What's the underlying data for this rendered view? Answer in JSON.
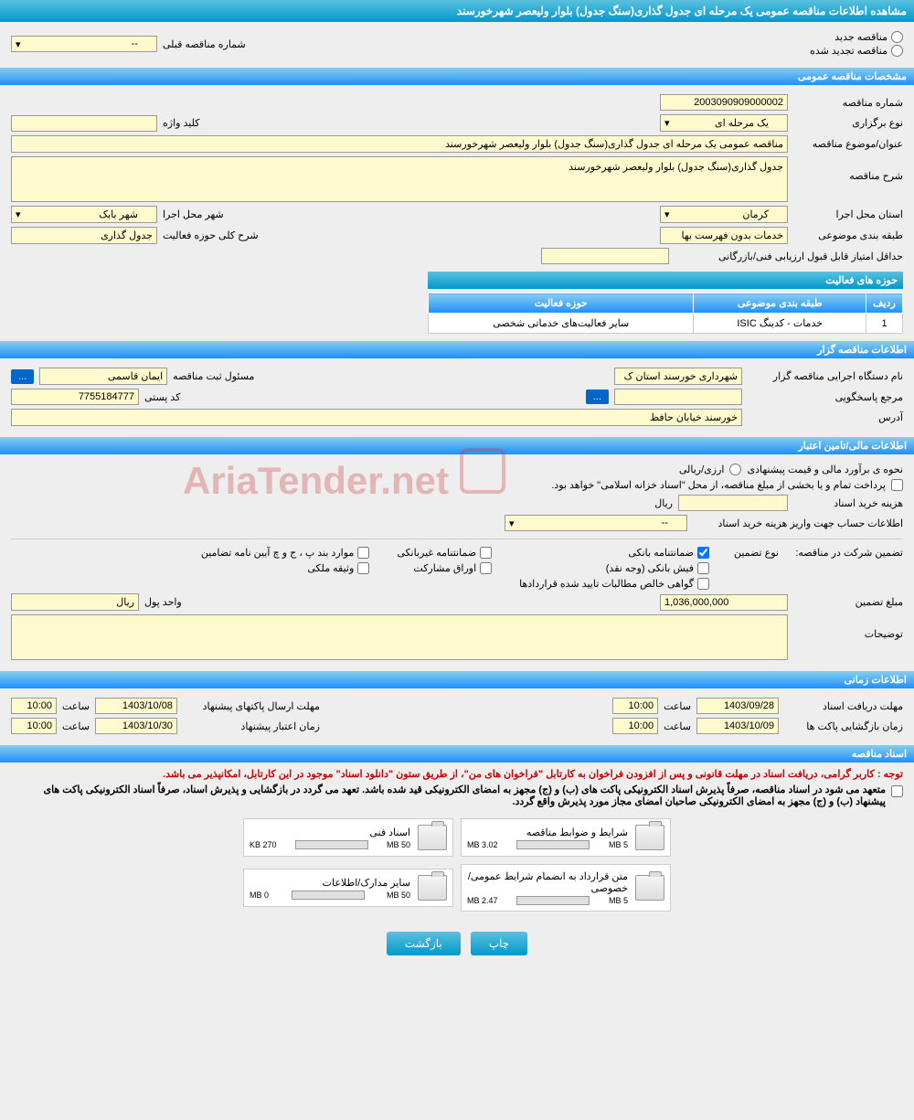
{
  "header": {
    "title": "مشاهده اطلاعات مناقصه عمومی یک مرحله ای جدول گذاری(سنگ جدول) بلوار ولیعصر شهرخورسند"
  },
  "tender_type": {
    "new_label": "مناقصه جدید",
    "renewed_label": "مناقصه تجدید شده",
    "prev_number_label": "شماره مناقصه قبلی",
    "prev_number_value": "--"
  },
  "sections": {
    "general": "مشخصات مناقصه عمومی",
    "organizer": "اطلاعات مناقصه گزار",
    "financial": "اطلاعات مالی/تامین اعتبار",
    "time": "اطلاعات زمانی",
    "documents": "اسناد مناقصه"
  },
  "general": {
    "number_label": "شماره مناقصه",
    "number_value": "2003090909000002",
    "type_label": "نوع برگزاری",
    "type_value": "یک مرحله ای",
    "keyword_label": "کلید واژه",
    "keyword_value": "",
    "title_label": "عنوان/موضوع مناقصه",
    "title_value": "مناقصه عمومی یک مرحله ای جدول گذاری(سنگ جدول) بلوار ولیعصر شهرخورسند",
    "desc_label": "شرح مناقصه",
    "desc_value": "جدول گذاری(سنگ جدول) بلوار ولیعصر شهرخورسند",
    "province_label": "استان محل اجرا",
    "province_value": "کرمان",
    "city_label": "شهر محل اجرا",
    "city_value": "شهر بابک",
    "category_label": "طبقه بندی موضوعی",
    "category_value": "خدمات بدون فهرست بها",
    "activity_label": "شرح کلی حوزه فعالیت",
    "activity_value": "جدول گذاری",
    "min_score_label": "حداقل امتیاز قابل قبول ارزیابی فنی/بازرگانی",
    "min_score_value": ""
  },
  "activity_table": {
    "title": "حوزه های فعالیت",
    "col_row": "ردیف",
    "col_category": "طبقه بندی موضوعی",
    "col_activity": "حوزه فعالیت",
    "rows": [
      {
        "num": "1",
        "category": "خدمات - کدینگ ISIC",
        "activity": "سایر فعالیت‌های خدماتی شخصی"
      }
    ]
  },
  "organizer": {
    "exec_label": "نام دستگاه اجرایی مناقصه گزار",
    "exec_value": "شهرداری خورسند استان ک",
    "registrar_label": "مسئول ثبت مناقصه",
    "registrar_value": "ایمان قاسمی",
    "response_label": "مرجع پاسخگویی",
    "response_value": "",
    "postal_label": "کد پستی",
    "postal_value": "7755184777",
    "address_label": "آدرس",
    "address_value": "خورسند خیابان حافظ",
    "btn": "..."
  },
  "financial": {
    "estimate_label": "نحوه ی برآورد مالی و قیمت پیشنهادی",
    "currency_option": "ارزی/ریالی",
    "treasury_text": "پرداخت تمام و یا بخشی از مبلغ مناقصه، از محل \"اسناد خزانه اسلامی\" خواهد بود.",
    "cost_label": "هزینه خرید اسناد",
    "cost_value": "",
    "cost_unit": "ریال",
    "account_label": "اطلاعات حساب جهت واریز هزینه خرید اسناد",
    "account_value": "--",
    "guarantee_label": "تضمین شرکت در مناقصه:",
    "guarantee_type_label": "نوع تضمین",
    "guarantee_options": {
      "bank": "ضمانتنامه بانکی",
      "nonbank": "ضمانتنامه غیربانکی",
      "clauses": "موارد بند پ ، ج و چ آیین نامه تضامین",
      "cash": "فیش بانکی (وجه نقد)",
      "bonds": "اوراق مشارکت",
      "property": "وثیقه ملکی",
      "certificate": "گواهی خالص مطالبات تایید شده قراردادها"
    },
    "amount_label": "مبلغ تضمین",
    "amount_value": "1,036,000,000",
    "unit_label": "واحد پول",
    "unit_value": "ریال",
    "notes_label": "توضیحات",
    "notes_value": ""
  },
  "time": {
    "receive_label": "مهلت دریافت اسناد",
    "receive_date": "1403/09/28",
    "receive_hour_label": "ساعت",
    "receive_hour": "10:00",
    "submit_label": "مهلت ارسال پاکتهای پیشنهاد",
    "submit_date": "1403/10/08",
    "submit_hour_label": "ساعت",
    "submit_hour": "10:00",
    "open_label": "زمان بازگشایی پاکت ها",
    "open_date": "1403/10/09",
    "open_hour_label": "ساعت",
    "open_hour": "10:00",
    "validity_label": "زمان اعتبار پیشنهاد",
    "validity_date": "1403/10/30",
    "validity_hour_label": "ساعت",
    "validity_hour": "10:00"
  },
  "documents": {
    "notice": "توجه : کاربر گرامی، دریافت اسناد در مهلت قانونی و پس از افزودن فراخوان به کارتابل \"فراخوان های من\"، از طریق ستون \"دانلود اسناد\" موجود در این کارتابل، امکانپذیر می باشد.",
    "commitment1": "متعهد می شود در اسناد مناقصه، صرفاً پذیرش اسناد الکترونیکی پاکت های (ب) و (ج) مجهز به امضای الکترونیکی قید شده باشد. تعهد می گردد در بازگشایی و پذیرش اسناد، صرفاً اسناد الکترونیکی پاکت های پیشنهاد (ب) و (ج) مجهز به امضای الکترونیکی صاحبان امضای مجاز مورد پذیرش واقع گردد.",
    "files": [
      {
        "title": "شرایط و ضوابط مناقصه",
        "used": "3.02 MB",
        "total": "5 MB",
        "pct": 60
      },
      {
        "title": "اسناد فنی",
        "used": "270 KB",
        "total": "50 MB",
        "pct": 1
      },
      {
        "title": "متن قرارداد به انضمام شرایط عمومی/خصوصی",
        "used": "2.47 MB",
        "total": "5 MB",
        "pct": 49
      },
      {
        "title": "سایر مدارک/اطلاعات",
        "used": "0 MB",
        "total": "50 MB",
        "pct": 0
      }
    ]
  },
  "buttons": {
    "print": "چاپ",
    "back": "بازگشت"
  },
  "colors": {
    "header_bg": "#0099cc",
    "field_bg": "#fffacd",
    "progress": "#8bc34a",
    "red": "#cc0000"
  }
}
